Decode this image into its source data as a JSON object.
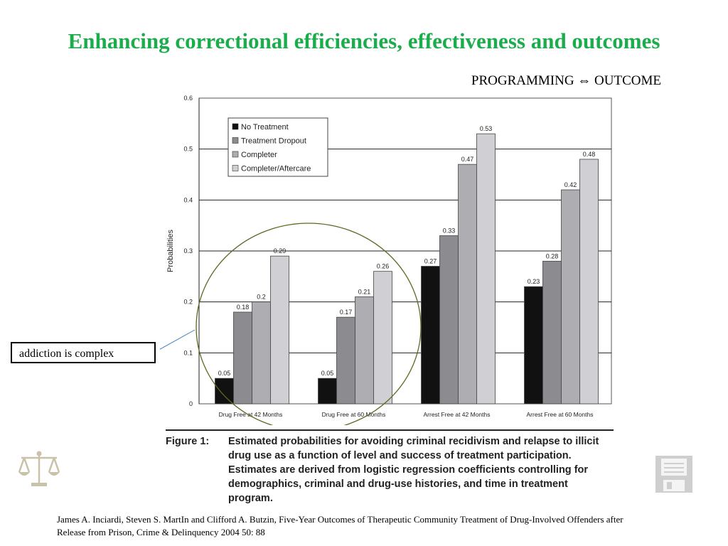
{
  "slide": {
    "title": "Enhancing correctional efficiencies, effectiveness and outcomes",
    "subtitle": "PROGRAMMING ⇔ OUTCOME",
    "callout": "addiction is complex",
    "figure_label": "Figure 1:",
    "figure_caption": "Estimated probabilities for avoiding criminal recidivism and relapse to illicit drug use as a function of level and success of treatment participation. Estimates are derived from logistic regression coefficients controlling for demographics, criminal and drug-use histories, and time in treatment program.",
    "citation": "James A. Inciardi, Steven S. MartIn and Clifford A. Butzin, Five-Year Outcomes of Therapeutic Community Treatment of Drug-Involved Offenders after Release from Prison, Crime & Delinquency 2004 50: 88",
    "icons": {
      "left": "scales-of-justice-icon",
      "right": "floppy-disk-icon"
    }
  },
  "chart_data": {
    "type": "bar",
    "title": "",
    "xlabel": "",
    "ylabel": "Probabilities",
    "ylim": [
      0,
      0.6
    ],
    "yticks": [
      "0",
      "0.1",
      "0.2",
      "0.3",
      "0.4",
      "0.5",
      "0.6"
    ],
    "grid": true,
    "legend": "top-left",
    "categories": [
      "Drug Free at 42 Months",
      "Drug Free at 60 Months",
      "Arrest Free at 42 Months",
      "Arrest Free at 60 Months"
    ],
    "series": [
      {
        "name": "No Treatment",
        "color": "#111111",
        "values": [
          0.05,
          0.05,
          0.27,
          0.23
        ],
        "labels": [
          "0.05",
          "0.05",
          "0.27",
          "0.23"
        ]
      },
      {
        "name": "Treatment Dropout",
        "color": "#8c8c90",
        "values": [
          0.18,
          0.17,
          0.33,
          0.28
        ],
        "labels": [
          "0.18",
          "0.17",
          "0.33",
          "0.28"
        ]
      },
      {
        "name": "Completer",
        "color": "#adadb2",
        "values": [
          0.2,
          0.21,
          0.47,
          0.42
        ],
        "labels": [
          "0.2",
          "0.21",
          "0.47",
          "0.42"
        ]
      },
      {
        "name": "Completer/Aftercare",
        "color": "#d0d0d4",
        "values": [
          0.29,
          0.26,
          0.53,
          0.48
        ],
        "labels": [
          "0.29",
          "0.26",
          "0.53",
          "0.48"
        ]
      }
    ],
    "highlight_circle_color": "#5a6b1e",
    "callout_line_color": "#3b7fc4"
  }
}
